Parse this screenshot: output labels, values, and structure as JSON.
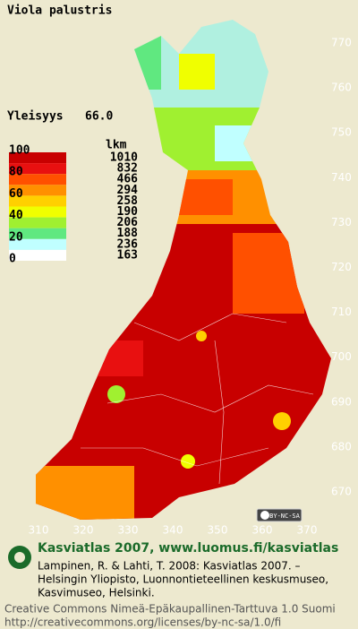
{
  "title": "Viola palustris",
  "frequency": {
    "label": "Yleisyys",
    "value": "66.0"
  },
  "legend": {
    "scale_labels": [
      "100",
      "80",
      "60",
      "40",
      "20",
      "0"
    ],
    "count_header": "lkm",
    "counts": [
      "1010",
      "832",
      "466",
      "294",
      "258",
      "190",
      "206",
      "188",
      "236",
      "163"
    ],
    "colors": [
      "#c80000",
      "#e81010",
      "#ff5000",
      "#ff9000",
      "#ffd000",
      "#f0ff00",
      "#a0f030",
      "#60e880",
      "#c0ffff",
      "#ffffff"
    ]
  },
  "grid_labels": {
    "north": [
      "770",
      "760",
      "750",
      "740",
      "730",
      "720",
      "710",
      "700",
      "690",
      "680",
      "670"
    ],
    "east": [
      "310",
      "320",
      "330",
      "340",
      "350",
      "360",
      "370"
    ]
  },
  "license_badge": "BY-NC-SA",
  "footer": {
    "headline": "Kasviatlas 2007, www.luomus.fi/kasviatlas",
    "citation": [
      "Lampinen, R. & Lahti, T. 2008: Kasviatlas 2007. –",
      "Helsingin Yliopisto, Luonnontieteellinen keskusmuseo,",
      "Kasvimuseo, Helsinki."
    ],
    "license": [
      "Creative Commons Nimeä-Epäkaupallinen-Tarttuva 1.0 Suomi",
      "http://creativecommons.org/licenses/by-nc-sa/1.0/fi"
    ]
  }
}
